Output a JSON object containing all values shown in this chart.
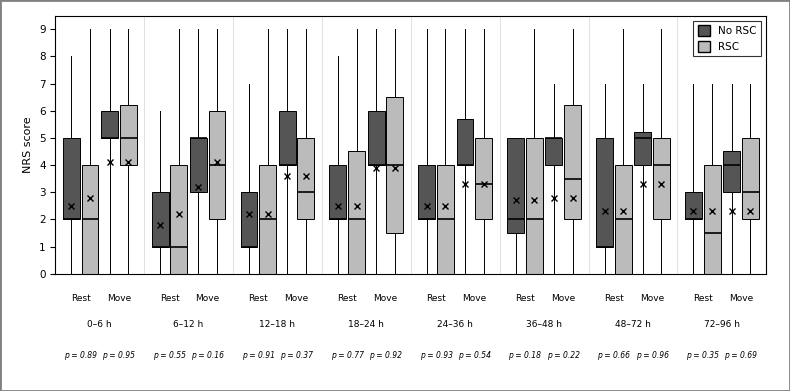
{
  "time_blocks": [
    "0–6 h",
    "6–12 h",
    "12–18 h",
    "18–24 h",
    "24–36 h",
    "36–48 h",
    "48–72 h",
    "72–96 h"
  ],
  "p_values_rest": [
    "p = 0.89",
    "p = 0.55",
    "p = 0.91",
    "p = 0.77",
    "p = 0.93",
    "p = 0.18",
    "p = 0.66",
    "p = 0.35"
  ],
  "p_values_move": [
    "p = 0.95",
    "p = 0.16",
    "p = 0.37",
    "p = 0.92",
    "p = 0.54",
    "p = 0.22",
    "p = 0.96",
    "p = 0.69"
  ],
  "ylabel": "NRS score",
  "ylim": [
    0,
    9.5
  ],
  "yticks": [
    0,
    1,
    2,
    3,
    4,
    5,
    6,
    7,
    8,
    9
  ],
  "color_no_rsc": "#555555",
  "color_rsc": "#bbbbbb",
  "boxes": {
    "0-6_rest_norsc": {
      "q1": 2,
      "median": 2,
      "q3": 5,
      "mean": 2.5,
      "whislo": 0,
      "whishi": 8
    },
    "0-6_rest_rsc": {
      "q1": 0,
      "median": 2,
      "q3": 4,
      "mean": 2.8,
      "whislo": 0,
      "whishi": 9
    },
    "0-6_move_norsc": {
      "q1": 5,
      "median": 5,
      "q3": 6,
      "mean": 4.1,
      "whislo": 0,
      "whishi": 9
    },
    "0-6_move_rsc": {
      "q1": 4,
      "median": 5,
      "q3": 6.2,
      "mean": 4.1,
      "whislo": 0,
      "whishi": 9
    },
    "6-12_rest_norsc": {
      "q1": 1,
      "median": 1,
      "q3": 3,
      "mean": 1.8,
      "whislo": 0,
      "whishi": 6
    },
    "6-12_rest_rsc": {
      "q1": 0,
      "median": 1,
      "q3": 4,
      "mean": 2.2,
      "whislo": 0,
      "whishi": 9
    },
    "6-12_move_norsc": {
      "q1": 3,
      "median": 5,
      "q3": 5,
      "mean": 3.2,
      "whislo": 0,
      "whishi": 9
    },
    "6-12_move_rsc": {
      "q1": 2,
      "median": 4,
      "q3": 6,
      "mean": 4.1,
      "whislo": 0,
      "whishi": 9
    },
    "12-18_rest_norsc": {
      "q1": 1,
      "median": 1,
      "q3": 3,
      "mean": 2.2,
      "whislo": 0,
      "whishi": 7
    },
    "12-18_rest_rsc": {
      "q1": 0,
      "median": 2,
      "q3": 4,
      "mean": 2.2,
      "whislo": 0,
      "whishi": 9
    },
    "12-18_move_norsc": {
      "q1": 4,
      "median": 4,
      "q3": 6,
      "mean": 3.6,
      "whislo": 0,
      "whishi": 9
    },
    "12-18_move_rsc": {
      "q1": 2,
      "median": 3,
      "q3": 5,
      "mean": 3.6,
      "whislo": 0,
      "whishi": 9
    },
    "18-24_rest_norsc": {
      "q1": 2,
      "median": 2,
      "q3": 4,
      "mean": 2.5,
      "whislo": 0,
      "whishi": 8
    },
    "18-24_rest_rsc": {
      "q1": 0,
      "median": 2,
      "q3": 4.5,
      "mean": 2.5,
      "whislo": 0,
      "whishi": 9
    },
    "18-24_move_norsc": {
      "q1": 4,
      "median": 4,
      "q3": 6,
      "mean": 3.9,
      "whislo": 0,
      "whishi": 9
    },
    "18-24_move_rsc": {
      "q1": 1.5,
      "median": 4,
      "q3": 6.5,
      "mean": 3.9,
      "whislo": 0,
      "whishi": 9
    },
    "24-36_rest_norsc": {
      "q1": 2,
      "median": 2,
      "q3": 4,
      "mean": 2.5,
      "whislo": 0,
      "whishi": 9
    },
    "24-36_rest_rsc": {
      "q1": 0,
      "median": 2,
      "q3": 4,
      "mean": 2.5,
      "whislo": 0,
      "whishi": 9
    },
    "24-36_move_norsc": {
      "q1": 4,
      "median": 4,
      "q3": 5.7,
      "mean": 3.3,
      "whislo": 0,
      "whishi": 9
    },
    "24-36_move_rsc": {
      "q1": 2,
      "median": 3.3,
      "q3": 5,
      "mean": 3.3,
      "whislo": 0,
      "whishi": 9
    },
    "36-48_rest_norsc": {
      "q1": 1.5,
      "median": 2,
      "q3": 5,
      "mean": 2.7,
      "whislo": 0,
      "whishi": 5
    },
    "36-48_rest_rsc": {
      "q1": 0,
      "median": 2,
      "q3": 5,
      "mean": 2.7,
      "whislo": 0,
      "whishi": 9
    },
    "36-48_move_norsc": {
      "q1": 4,
      "median": 5,
      "q3": 5,
      "mean": 2.8,
      "whislo": 0,
      "whishi": 7
    },
    "36-48_move_rsc": {
      "q1": 2,
      "median": 3.5,
      "q3": 6.2,
      "mean": 2.8,
      "whislo": 0,
      "whishi": 9
    },
    "48-72_rest_norsc": {
      "q1": 1,
      "median": 1,
      "q3": 5,
      "mean": 2.3,
      "whislo": 0,
      "whishi": 7
    },
    "48-72_rest_rsc": {
      "q1": 0,
      "median": 2,
      "q3": 4,
      "mean": 2.3,
      "whislo": 0,
      "whishi": 9
    },
    "48-72_move_norsc": {
      "q1": 4,
      "median": 5,
      "q3": 5.2,
      "mean": 3.3,
      "whislo": 0,
      "whishi": 7
    },
    "48-72_move_rsc": {
      "q1": 2,
      "median": 4,
      "q3": 5,
      "mean": 3.3,
      "whislo": 0,
      "whishi": 9
    },
    "72-96_rest_norsc": {
      "q1": 2,
      "median": 2,
      "q3": 3,
      "mean": 2.3,
      "whislo": 0,
      "whishi": 7
    },
    "72-96_rest_rsc": {
      "q1": 0,
      "median": 1.5,
      "q3": 4,
      "mean": 2.3,
      "whislo": 0,
      "whishi": 7
    },
    "72-96_move_norsc": {
      "q1": 3,
      "median": 4,
      "q3": 4.5,
      "mean": 2.3,
      "whislo": 0,
      "whishi": 7
    },
    "72-96_move_rsc": {
      "q1": 2,
      "median": 3,
      "q3": 5,
      "mean": 2.3,
      "whislo": 0,
      "whishi": 7
    }
  }
}
